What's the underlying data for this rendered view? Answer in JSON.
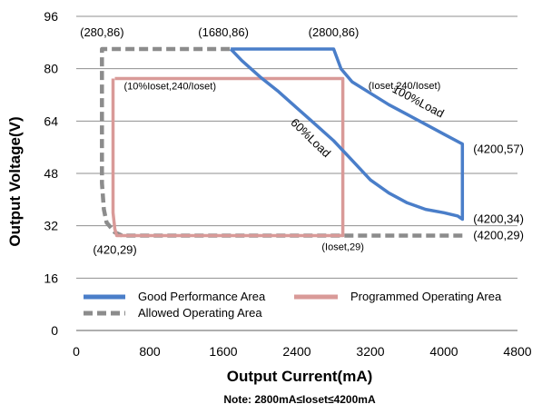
{
  "chart_data": {
    "type": "line",
    "xlabel": "Output Current(mA)",
    "ylabel": "Output Voltage(V)",
    "note": "Note:  2800mA≤Ioset≤4200mA",
    "xlim": [
      0,
      4800
    ],
    "ylim": [
      0,
      96
    ],
    "xticks": [
      0,
      800,
      1600,
      2400,
      3200,
      4000,
      4800
    ],
    "yticks": [
      0,
      16,
      32,
      48,
      64,
      80,
      96
    ],
    "grid": "horizontal",
    "legend_position": "bottom-left",
    "colors": {
      "good": "#4a7ec9",
      "programmed": "#d99a98",
      "allowed": "#8c8c8c"
    },
    "series": [
      {
        "name": "Good Performance Area",
        "style": "solid",
        "color": "#4a7ec9",
        "points": [
          [
            1680,
            86
          ],
          [
            2800,
            86
          ],
          [
            2880,
            80
          ],
          [
            3000,
            76
          ],
          [
            3200,
            72.5
          ],
          [
            3400,
            69
          ],
          [
            3600,
            66
          ],
          [
            3800,
            63
          ],
          [
            4000,
            60
          ],
          [
            4200,
            57
          ],
          [
            4200,
            34
          ],
          [
            4150,
            35
          ],
          [
            4000,
            36
          ],
          [
            3800,
            37
          ],
          [
            3600,
            39
          ],
          [
            3400,
            42
          ],
          [
            3200,
            46
          ],
          [
            3000,
            52
          ],
          [
            2800,
            58
          ],
          [
            2600,
            63
          ],
          [
            2400,
            68
          ],
          [
            2200,
            73
          ],
          [
            2000,
            77.5
          ],
          [
            1800,
            82.5
          ],
          [
            1680,
            86
          ]
        ]
      },
      {
        "name": "Programmed Operating Area",
        "style": "solid",
        "color": "#d99a98",
        "points": [
          [
            420,
            77
          ],
          [
            2900,
            77
          ],
          [
            2900,
            29
          ],
          [
            440,
            29
          ],
          [
            420,
            31
          ],
          [
            400,
            36
          ],
          [
            400,
            77
          ]
        ]
      },
      {
        "name": "Allowed Operating Area",
        "style": "dashed",
        "color": "#8c8c8c",
        "points": [
          [
            4200,
            29
          ],
          [
            500,
            29
          ],
          [
            420,
            30
          ],
          [
            330,
            33
          ],
          [
            300,
            37
          ],
          [
            280,
            45
          ],
          [
            280,
            86
          ],
          [
            1680,
            86
          ]
        ]
      }
    ],
    "annotations": [
      {
        "text": "(280,86)",
        "x": 280,
        "y": 86,
        "size": "normal",
        "anchor": "middle",
        "dx": 0,
        "dy": -14
      },
      {
        "text": "(1680,86)",
        "x": 1680,
        "y": 86,
        "size": "normal",
        "anchor": "middle",
        "dx": -8,
        "dy": -14
      },
      {
        "text": "(2800,86)",
        "x": 2800,
        "y": 86,
        "size": "normal",
        "anchor": "middle",
        "dx": 0,
        "dy": -14
      },
      {
        "text": "(Ioset,240/Ioset)",
        "x": 3000,
        "y": 76,
        "size": "small",
        "anchor": "start",
        "dx": 18,
        "dy": 8
      },
      {
        "text": "(10%Ioset,240/Ioset)",
        "x": 420,
        "y": 77,
        "size": "small",
        "anchor": "start",
        "dx": 10,
        "dy": 12
      },
      {
        "text": "100%Load",
        "x": 3700,
        "y": 69,
        "size": "normal",
        "anchor": "middle",
        "rotate": 28
      },
      {
        "text": "60%Load",
        "x": 2520,
        "y": 58,
        "size": "normal",
        "anchor": "middle",
        "rotate": 44
      },
      {
        "text": "(4200,57)",
        "x": 4200,
        "y": 57,
        "size": "normal",
        "anchor": "start",
        "dx": 12,
        "dy": 10
      },
      {
        "text": "(4200,34)",
        "x": 4200,
        "y": 34,
        "size": "normal",
        "anchor": "start",
        "dx": 12,
        "dy": 4
      },
      {
        "text": "(4200,29)",
        "x": 4200,
        "y": 29,
        "size": "normal",
        "anchor": "start",
        "dx": 12,
        "dy": 4
      },
      {
        "text": "(420,29)",
        "x": 420,
        "y": 29,
        "size": "normal",
        "anchor": "middle",
        "dx": 0,
        "dy": 20
      },
      {
        "text": "(Ioset,29)",
        "x": 2900,
        "y": 29,
        "size": "small",
        "anchor": "middle",
        "dx": 0,
        "dy": 16
      }
    ]
  }
}
